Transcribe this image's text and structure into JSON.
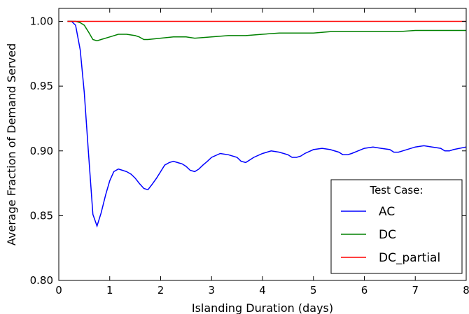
{
  "chart_data": {
    "type": "line",
    "title": "",
    "xlabel": "Islanding Duration (days)",
    "ylabel": "Average Fraction of Demand Served",
    "xlim": [
      0,
      8
    ],
    "ylim": [
      0.8,
      1.01
    ],
    "xticks": [
      0,
      1,
      2,
      3,
      4,
      5,
      6,
      7,
      8
    ],
    "xtick_labels": [
      "0",
      "1",
      "2",
      "3",
      "4",
      "5",
      "6",
      "7",
      "8"
    ],
    "yticks": [
      0.8,
      0.85,
      0.9,
      0.95,
      1.0
    ],
    "ytick_labels": [
      "0.80",
      "0.85",
      "0.90",
      "0.95",
      "1.00"
    ],
    "grid": false,
    "legend": {
      "title": "Test Case:",
      "placement": "lower-right"
    },
    "series": [
      {
        "name": "AC",
        "color": "#0000ff",
        "x": [
          0.17,
          0.25,
          0.33,
          0.42,
          0.5,
          0.58,
          0.67,
          0.75,
          0.83,
          0.92,
          1.0,
          1.08,
          1.17,
          1.25,
          1.33,
          1.42,
          1.5,
          1.58,
          1.67,
          1.75,
          1.83,
          1.92,
          2.0,
          2.08,
          2.17,
          2.25,
          2.33,
          2.42,
          2.5,
          2.58,
          2.67,
          2.75,
          2.83,
          2.92,
          3.0,
          3.17,
          3.33,
          3.5,
          3.58,
          3.67,
          3.75,
          3.83,
          4.0,
          4.17,
          4.33,
          4.5,
          4.58,
          4.67,
          4.75,
          4.83,
          5.0,
          5.17,
          5.33,
          5.5,
          5.58,
          5.67,
          5.75,
          6.0,
          6.17,
          6.33,
          6.5,
          6.58,
          6.67,
          6.75,
          7.0,
          7.17,
          7.33,
          7.5,
          7.58,
          7.67,
          7.75,
          8.0
        ],
        "y": [
          1.0,
          1.0,
          0.997,
          0.978,
          0.945,
          0.9,
          0.851,
          0.842,
          0.852,
          0.866,
          0.877,
          0.884,
          0.886,
          0.885,
          0.884,
          0.882,
          0.879,
          0.875,
          0.871,
          0.87,
          0.874,
          0.879,
          0.884,
          0.889,
          0.891,
          0.892,
          0.891,
          0.89,
          0.888,
          0.885,
          0.884,
          0.886,
          0.889,
          0.892,
          0.895,
          0.898,
          0.897,
          0.895,
          0.892,
          0.891,
          0.893,
          0.895,
          0.898,
          0.9,
          0.899,
          0.897,
          0.895,
          0.895,
          0.896,
          0.898,
          0.901,
          0.902,
          0.901,
          0.899,
          0.897,
          0.897,
          0.898,
          0.902,
          0.903,
          0.902,
          0.901,
          0.899,
          0.899,
          0.9,
          0.903,
          0.904,
          0.903,
          0.902,
          0.9,
          0.9,
          0.901,
          0.903
        ]
      },
      {
        "name": "DC",
        "color": "#008000",
        "x": [
          0.17,
          0.33,
          0.42,
          0.5,
          0.58,
          0.67,
          0.75,
          0.83,
          1.0,
          1.17,
          1.33,
          1.5,
          1.58,
          1.67,
          1.75,
          2.0,
          2.25,
          2.5,
          2.67,
          3.0,
          3.33,
          3.67,
          4.0,
          4.33,
          4.67,
          5.0,
          5.33,
          5.67,
          6.0,
          6.33,
          6.67,
          7.0,
          7.33,
          7.67,
          8.0
        ],
        "y": [
          1.0,
          1.0,
          0.999,
          0.997,
          0.992,
          0.986,
          0.985,
          0.986,
          0.988,
          0.99,
          0.99,
          0.989,
          0.988,
          0.986,
          0.986,
          0.987,
          0.988,
          0.988,
          0.987,
          0.988,
          0.989,
          0.989,
          0.99,
          0.991,
          0.991,
          0.991,
          0.992,
          0.992,
          0.992,
          0.992,
          0.992,
          0.993,
          0.993,
          0.993,
          0.993
        ]
      },
      {
        "name": "DC_partial",
        "color": "#ff0000",
        "x": [
          0.17,
          8.0
        ],
        "y": [
          1.0,
          1.0
        ]
      }
    ]
  }
}
